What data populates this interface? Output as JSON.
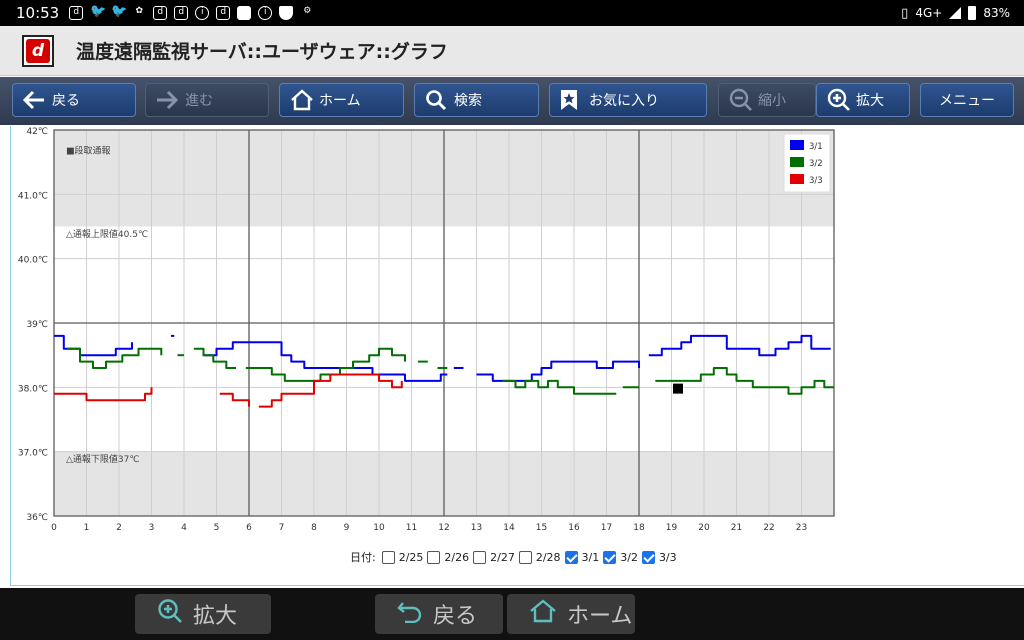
{
  "status": {
    "time": "10:53",
    "notif_icons": [
      "d",
      "tw",
      "tw",
      "cat",
      "d",
      "d",
      "i",
      "d",
      "sd",
      "i",
      "shield",
      "cam"
    ],
    "network": "4G+",
    "battery": "83%"
  },
  "titlebar": {
    "title": "温度遠隔監視サーバ::ユーザウェア::グラフ"
  },
  "toolbar": {
    "back": "戻る",
    "forward": "進む",
    "home": "ホーム",
    "search": "検索",
    "favorites": "お気に入り",
    "zoom_out": "縮小",
    "zoom_in": "拡大",
    "menu": "メニュー"
  },
  "chart_data": {
    "type": "line",
    "ylim": [
      36,
      42
    ],
    "yticks": [
      "36℃",
      "37.0℃",
      "38.0℃",
      "39℃",
      "40.0℃",
      "41.0℃",
      "42℃"
    ],
    "xlim": [
      0,
      24
    ],
    "xticks": [
      "0",
      "1",
      "2",
      "3",
      "4",
      "5",
      "6",
      "7",
      "8",
      "9",
      "10",
      "11",
      "12",
      "13",
      "14",
      "15",
      "16",
      "17",
      "18",
      "19",
      "20",
      "21",
      "22",
      "23"
    ],
    "bands": [
      {
        "from": 40.5,
        "to": 42,
        "color": "#e4e4e4",
        "label": "■段取通報",
        "label_y": 41.7
      },
      {
        "from": 36,
        "to": 37,
        "color": "#e4e4e4",
        "label": "△通報下限値37℃",
        "label_y": 36.9
      }
    ],
    "annotations": [
      {
        "text": "△通報上限値40.5℃",
        "y": 40.4
      }
    ],
    "legend": {
      "position": "top-right"
    },
    "series": [
      {
        "name": "3/1",
        "color": "#0000ee",
        "segments": [
          [
            [
              0,
              38.8
            ],
            [
              0.3,
              38.6
            ],
            [
              0.8,
              38.5
            ],
            [
              1.5,
              38.5
            ],
            [
              1.9,
              38.6
            ],
            [
              2.2,
              38.6
            ],
            [
              2.4,
              38.7
            ]
          ],
          [
            [
              3.6,
              38.8
            ],
            [
              3.7,
              38.8
            ]
          ],
          [
            [
              4.6,
              38.5
            ],
            [
              5,
              38.6
            ],
            [
              5.5,
              38.7
            ],
            [
              6.5,
              38.7
            ],
            [
              7,
              38.5
            ],
            [
              7.3,
              38.4
            ],
            [
              7.7,
              38.3
            ],
            [
              8.3,
              38.3
            ],
            [
              8.8,
              38.3
            ],
            [
              9.3,
              38.3
            ],
            [
              9.8,
              38.2
            ],
            [
              10.3,
              38.2
            ],
            [
              10.8,
              38.1
            ],
            [
              11.5,
              38.1
            ],
            [
              11.9,
              38.2
            ],
            [
              12.1,
              38.2
            ]
          ],
          [
            [
              12.3,
              38.3
            ],
            [
              12.6,
              38.3
            ]
          ],
          [
            [
              13,
              38.2
            ],
            [
              13.5,
              38.1
            ],
            [
              14,
              38.1
            ],
            [
              14.3,
              38.1
            ],
            [
              14.7,
              38.2
            ],
            [
              15,
              38.3
            ],
            [
              15.3,
              38.4
            ],
            [
              16.2,
              38.4
            ],
            [
              16.7,
              38.3
            ],
            [
              17.2,
              38.4
            ],
            [
              17.7,
              38.4
            ],
            [
              18,
              38.3
            ]
          ],
          [
            [
              18.3,
              38.5
            ],
            [
              18.7,
              38.6
            ],
            [
              19.3,
              38.7
            ],
            [
              19.6,
              38.8
            ],
            [
              20.3,
              38.8
            ],
            [
              20.7,
              38.6
            ],
            [
              21.3,
              38.6
            ],
            [
              21.7,
              38.5
            ],
            [
              22.2,
              38.6
            ],
            [
              22.6,
              38.7
            ],
            [
              23,
              38.8
            ],
            [
              23.3,
              38.6
            ],
            [
              23.9,
              38.6
            ]
          ]
        ]
      },
      {
        "name": "3/2",
        "color": "#007000",
        "segments": [
          [
            [
              0.4,
              38.6
            ],
            [
              0.8,
              38.4
            ],
            [
              1.2,
              38.3
            ],
            [
              1.6,
              38.4
            ],
            [
              2.1,
              38.5
            ],
            [
              2.6,
              38.6
            ],
            [
              3,
              38.6
            ],
            [
              3.3,
              38.5
            ]
          ],
          [
            [
              3.8,
              38.5
            ],
            [
              4,
              38.5
            ]
          ],
          [
            [
              4.3,
              38.6
            ],
            [
              4.6,
              38.5
            ],
            [
              4.9,
              38.4
            ],
            [
              5.3,
              38.3
            ],
            [
              5.6,
              38.3
            ]
          ],
          [
            [
              5.9,
              38.3
            ],
            [
              6.3,
              38.3
            ],
            [
              6.7,
              38.2
            ],
            [
              7.1,
              38.1
            ],
            [
              7.7,
              38.1
            ],
            [
              8.2,
              38.2
            ],
            [
              8.8,
              38.3
            ],
            [
              9.2,
              38.4
            ],
            [
              9.7,
              38.5
            ],
            [
              10,
              38.6
            ],
            [
              10.4,
              38.5
            ],
            [
              10.8,
              38.4
            ]
          ],
          [
            [
              11.2,
              38.4
            ],
            [
              11.5,
              38.4
            ]
          ],
          [
            [
              11.8,
              38.3
            ],
            [
              12.1,
              38.3
            ]
          ],
          [
            [
              13.8,
              38.1
            ],
            [
              14.2,
              38.0
            ],
            [
              14.5,
              38.1
            ],
            [
              14.9,
              38.0
            ],
            [
              15.2,
              38.1
            ],
            [
              15.5,
              38.0
            ],
            [
              16,
              37.9
            ],
            [
              16.8,
              37.9
            ],
            [
              17.3,
              37.9
            ]
          ],
          [
            [
              17.5,
              38.0
            ],
            [
              18,
              38.0
            ]
          ],
          [
            [
              18.5,
              38.1
            ],
            [
              19.5,
              38.1
            ],
            [
              19.9,
              38.2
            ],
            [
              20.3,
              38.3
            ],
            [
              20.7,
              38.2
            ],
            [
              21,
              38.1
            ],
            [
              21.5,
              38.0
            ],
            [
              22.2,
              38.0
            ],
            [
              22.6,
              37.9
            ],
            [
              23,
              38.0
            ],
            [
              23.4,
              38.1
            ],
            [
              23.7,
              38.0
            ],
            [
              24,
              38.0
            ]
          ]
        ]
      },
      {
        "name": "3/3",
        "color": "#e00000",
        "segments": [
          [
            [
              0,
              37.9
            ],
            [
              0.5,
              37.9
            ],
            [
              1,
              37.8
            ],
            [
              2,
              37.8
            ],
            [
              2.5,
              37.8
            ],
            [
              2.8,
              37.9
            ],
            [
              3,
              38.0
            ]
          ],
          [
            [
              5.1,
              37.9
            ],
            [
              5.5,
              37.8
            ],
            [
              6,
              37.7
            ]
          ],
          [
            [
              6.3,
              37.7
            ],
            [
              6.7,
              37.8
            ],
            [
              7,
              37.9
            ],
            [
              7.5,
              37.9
            ],
            [
              8,
              38.1
            ],
            [
              8.5,
              38.2
            ],
            [
              9,
              38.2
            ],
            [
              9.5,
              38.2
            ],
            [
              10,
              38.1
            ],
            [
              10.4,
              38.0
            ],
            [
              10.7,
              38.1
            ]
          ]
        ]
      }
    ],
    "marker": {
      "x": 19.2,
      "y": 37.98
    }
  },
  "dates": {
    "label": "日付:",
    "items": [
      {
        "label": "2/25",
        "checked": false
      },
      {
        "label": "2/26",
        "checked": false
      },
      {
        "label": "2/27",
        "checked": false
      },
      {
        "label": "2/28",
        "checked": false
      },
      {
        "label": "3/1",
        "checked": true
      },
      {
        "label": "3/2",
        "checked": true
      },
      {
        "label": "3/3",
        "checked": true
      }
    ]
  },
  "bottombar": {
    "zoom_in": "拡大",
    "back": "戻る",
    "home": "ホーム"
  }
}
